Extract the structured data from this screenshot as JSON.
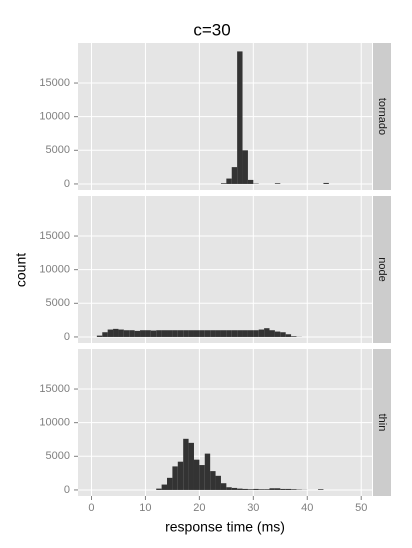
{
  "chart_data": {
    "type": "histogram",
    "title": "c=30",
    "x_label": "response time (ms)",
    "y_label": "count",
    "bins": [
      0,
      1,
      2,
      3,
      4,
      5,
      6,
      7,
      8,
      9,
      10,
      11,
      12,
      13,
      14,
      15,
      16,
      17,
      18,
      19,
      20,
      21,
      22,
      23,
      24,
      25,
      26,
      27,
      28,
      29,
      30,
      31,
      32,
      33,
      34,
      35,
      36,
      37,
      38,
      39,
      40,
      41,
      42,
      43,
      44,
      45
    ],
    "xlim": [
      -2.5,
      52
    ],
    "xticks": [
      0,
      10,
      20,
      30,
      40,
      50
    ],
    "ylim": [
      -900,
      20950
    ],
    "yticks": [
      0,
      5000,
      10000,
      15000
    ],
    "grid": true,
    "color": "#333333",
    "series": [
      {
        "name": "tornado",
        "values": [
          0,
          0,
          0,
          0,
          0,
          0,
          0,
          0,
          0,
          0,
          0,
          0,
          0,
          0,
          0,
          0,
          0,
          0,
          0,
          0,
          0,
          0,
          0,
          0,
          100,
          800,
          2500,
          19700,
          5000,
          600,
          50,
          0,
          0,
          0,
          100,
          0,
          0,
          0,
          0,
          0,
          0,
          0,
          0,
          150,
          0
        ]
      },
      {
        "name": "node",
        "values": [
          0,
          200,
          700,
          1100,
          1200,
          1100,
          1000,
          1000,
          900,
          1000,
          1000,
          950,
          1000,
          1000,
          1000,
          1000,
          1000,
          1000,
          1000,
          1000,
          1000,
          1000,
          1000,
          1000,
          1000,
          1000,
          1000,
          1000,
          1000,
          1000,
          1000,
          1100,
          1300,
          1000,
          800,
          700,
          400,
          100,
          20,
          0,
          0,
          0,
          0,
          0,
          0
        ]
      },
      {
        "name": "thin",
        "values": [
          0,
          0,
          0,
          0,
          0,
          0,
          0,
          0,
          0,
          0,
          0,
          0,
          200,
          800,
          1800,
          3500,
          4200,
          7600,
          7000,
          4500,
          3700,
          5400,
          2800,
          2100,
          1000,
          400,
          300,
          200,
          150,
          100,
          150,
          100,
          100,
          250,
          250,
          150,
          150,
          100,
          50,
          20,
          0,
          0,
          100,
          0,
          0
        ]
      }
    ]
  }
}
